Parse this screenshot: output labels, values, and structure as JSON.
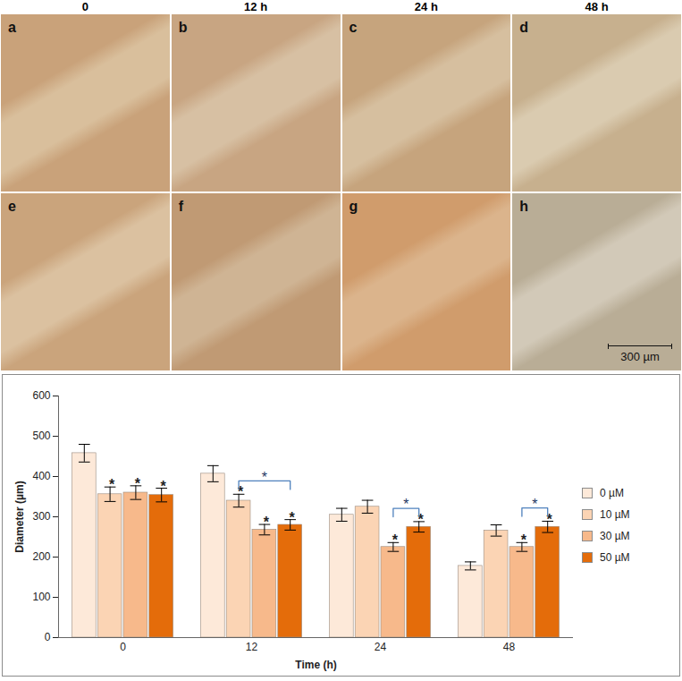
{
  "figure": {
    "column_headers": [
      "0",
      "12 h",
      "24 h",
      "48 h"
    ],
    "panel_labels": [
      "a",
      "b",
      "c",
      "d",
      "e",
      "f",
      "g",
      "h"
    ],
    "scale_bar": "300 µm"
  },
  "chart_data": {
    "type": "bar",
    "x_label": "Time (h)",
    "y_label": "Diameter (µm)",
    "categories": [
      "0",
      "12",
      "24",
      "48"
    ],
    "series": [
      {
        "name": "0 µM",
        "color": "#fde9d9",
        "values": [
          458,
          407,
          305,
          178
        ],
        "errors": [
          22,
          20,
          16,
          10
        ]
      },
      {
        "name": "10 µM",
        "color": "#fbd4b4",
        "values": [
          356,
          340,
          325,
          266
        ],
        "errors": [
          18,
          16,
          16,
          14
        ],
        "significance": [
          "*",
          "*",
          null,
          null
        ]
      },
      {
        "name": "30 µM",
        "color": "#f7b98b",
        "values": [
          360,
          268,
          225,
          225
        ],
        "errors": [
          17,
          13,
          11,
          11
        ],
        "significance": [
          "*",
          "*",
          "*",
          "*"
        ]
      },
      {
        "name": "50 µM",
        "color": "#e46c0a",
        "values": [
          354,
          280,
          275,
          275
        ],
        "errors": [
          17,
          13,
          13,
          14
        ],
        "significance": [
          "*",
          "*",
          "*",
          "*"
        ]
      }
    ],
    "comparisons": [
      {
        "category": "12",
        "from": "10 µM",
        "to": "50 µM",
        "label": "*"
      },
      {
        "category": "24",
        "from": "30 µM",
        "to": "50 µM",
        "label": "*"
      },
      {
        "category": "48",
        "from": "30 µM",
        "to": "50 µM",
        "label": "*"
      }
    ],
    "ylim": [
      0,
      600
    ],
    "yticks": [
      0,
      100,
      200,
      300,
      400,
      500,
      600
    ],
    "grid": false,
    "legend": "right"
  }
}
